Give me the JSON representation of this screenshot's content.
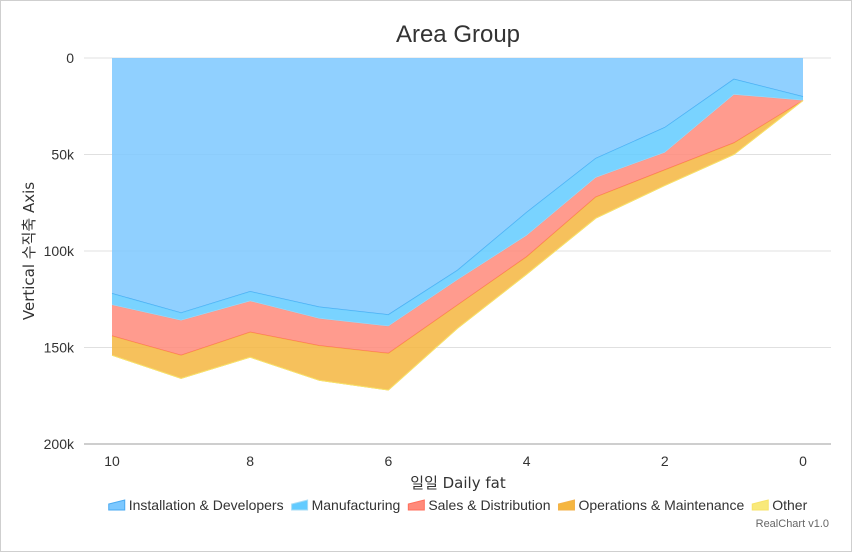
{
  "chart_data": {
    "type": "area",
    "stacked": true,
    "title": "Area Group",
    "xlabel": "일일 Daily fat",
    "ylabel": "Vertical 수직축 Axis",
    "x": [
      10,
      9,
      8,
      7,
      6,
      5,
      4,
      3,
      2,
      1,
      0
    ],
    "x_ticks": [
      10,
      8,
      6,
      4,
      2,
      0
    ],
    "x_reversed": true,
    "y_reversed": true,
    "ylim": [
      0,
      200000
    ],
    "y_ticks": [
      0,
      50000,
      100000,
      150000,
      200000
    ],
    "y_tick_labels": [
      "0",
      "50k",
      "100k",
      "150k",
      "200k"
    ],
    "grid": true,
    "legend_position": "bottom",
    "series": [
      {
        "name": "Installation & Developers",
        "color": "#4aaaf0",
        "fill": "#7cc8ff",
        "values": [
          122000,
          132000,
          121000,
          129000,
          133000,
          110000,
          80000,
          52000,
          36000,
          11000,
          20000
        ]
      },
      {
        "name": "Manufacturing",
        "color": "#a8dcf6",
        "fill": "#62cbff",
        "values": [
          6000,
          4000,
          5000,
          6000,
          6000,
          5000,
          12000,
          10000,
          13000,
          8000,
          2000
        ]
      },
      {
        "name": "Sales & Distribution",
        "color": "#ff6f5c",
        "fill": "#ff8a7a",
        "values": [
          16000,
          18000,
          16000,
          14000,
          14000,
          13000,
          11000,
          10000,
          9000,
          25000,
          0
        ]
      },
      {
        "name": "Operations & Maintenance",
        "color": "#f3b24a",
        "fill": "#f5b640",
        "values": [
          10000,
          12000,
          13000,
          18000,
          19000,
          12000,
          9000,
          11000,
          8000,
          6000,
          0
        ]
      },
      {
        "name": "Other",
        "color": "#f7e36a",
        "fill": "#f9e97a",
        "values": [
          0,
          0,
          0,
          0,
          0,
          0,
          0,
          0,
          0,
          0,
          0
        ]
      }
    ]
  },
  "credit": "RealChart v1.0"
}
